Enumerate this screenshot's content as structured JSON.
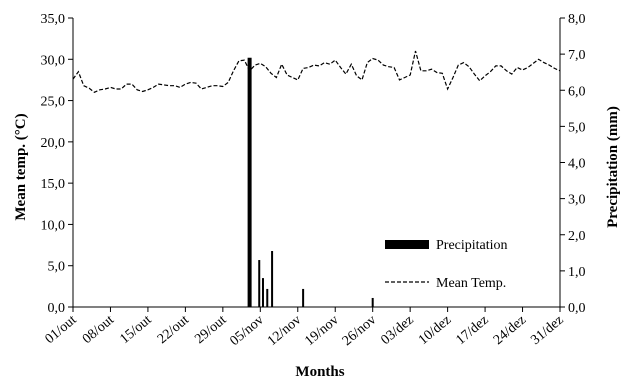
{
  "chart_data": {
    "type": "bar+line",
    "title": "",
    "xlabel": "Months",
    "ylabel_left": "Mean temp. (°C)",
    "ylabel_right": "Precipitation (mm)",
    "left_axis": {
      "min": 0,
      "max": 35,
      "step": 5,
      "tick_labels": [
        "0,0",
        "5,0",
        "10,0",
        "15,0",
        "20,0",
        "25,0",
        "30,0",
        "35,0"
      ]
    },
    "right_axis": {
      "min": 0,
      "max": 8,
      "step": 1,
      "tick_labels": [
        "0,0",
        "1,0",
        "2,0",
        "3,0",
        "4,0",
        "5,0",
        "6,0",
        "7,0",
        "8,0"
      ]
    },
    "x_axis": {
      "min_day": 0,
      "max_day": 91,
      "tick_days": [
        0,
        7,
        14,
        21,
        28,
        35,
        42,
        49,
        56,
        63,
        70,
        77,
        84,
        91
      ],
      "tick_labels": [
        "01/out",
        "08/out",
        "15/out",
        "22/out",
        "29/out",
        "05/nov",
        "12/nov",
        "19/nov",
        "26/nov",
        "03/dez",
        "10/dez",
        "17/dez",
        "24/dez",
        "31/dez"
      ]
    },
    "grid": false,
    "legend": {
      "placement": "bottom-right",
      "entries": [
        {
          "label": "Precipitation",
          "style": "bar",
          "color": "#000000"
        },
        {
          "label": "Mean Temp.",
          "style": "dashed-line",
          "color": "#000000"
        }
      ]
    },
    "series": [
      {
        "name": "Precipitation",
        "axis": "right",
        "points": [
          {
            "day": 33,
            "value": 6.9
          },
          {
            "day": 34.8,
            "value": 1.3
          },
          {
            "day": 35.5,
            "value": 0.8
          },
          {
            "day": 36.3,
            "value": 0.5
          },
          {
            "day": 37.2,
            "value": 1.55
          },
          {
            "day": 43,
            "value": 0.5
          },
          {
            "day": 56,
            "value": 0.25
          }
        ]
      },
      {
        "name": "Mean Temp.",
        "axis": "left",
        "values": [
          27.6,
          28.5,
          26.8,
          26.5,
          26.0,
          26.3,
          26.4,
          26.6,
          26.4,
          26.4,
          27.0,
          27.0,
          26.3,
          26.1,
          26.3,
          26.6,
          27.0,
          26.9,
          26.8,
          26.8,
          26.6,
          27.0,
          27.2,
          27.1,
          26.4,
          26.6,
          26.8,
          26.8,
          26.7,
          27.2,
          28.6,
          29.8,
          29.9,
          28.6,
          29.3,
          29.5,
          29.1,
          28.3,
          27.8,
          29.4,
          28.1,
          27.8,
          27.5,
          28.9,
          29.0,
          29.3,
          29.2,
          29.6,
          29.4,
          29.9,
          29.0,
          28.2,
          29.4,
          28.0,
          27.5,
          29.6,
          30.1,
          29.9,
          29.3,
          29.1,
          29.0,
          27.5,
          27.8,
          28.1,
          31.0,
          28.6,
          28.6,
          28.8,
          28.4,
          28.3,
          26.4,
          27.8,
          29.3,
          29.6,
          29.1,
          28.2,
          27.4,
          28.0,
          28.5,
          29.2,
          29.2,
          28.6,
          28.2,
          29.0,
          28.7,
          29.0,
          29.5,
          30.0,
          29.6,
          29.3,
          28.9,
          28.6
        ]
      }
    ]
  }
}
